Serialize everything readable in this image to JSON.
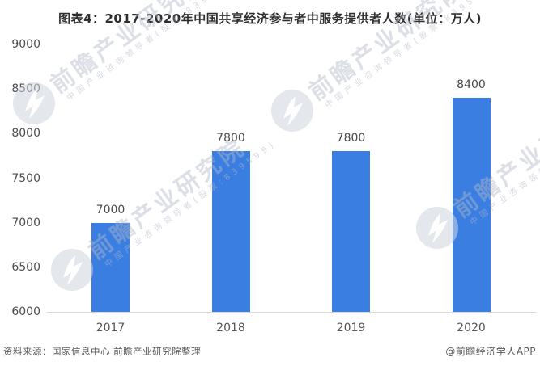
{
  "title": "图表4：2017-2020年中国共享经济参与者中服务提供者人数(单位：万人)",
  "footer": {
    "source": "资料来源：国家信息中心 前瞻产业研究院整理",
    "credit": "@前瞻经济学人APP"
  },
  "watermark": {
    "large": "前瞻产业研究院",
    "small": "中国产业咨询领导者(股票:839599)"
  },
  "colors": {
    "bar": "#3b7ee2",
    "axis_line": "#d9d9d9",
    "tick_text": "#4d4d4d",
    "watermark": "#dfe2e8"
  },
  "chart_data": {
    "type": "bar",
    "categories": [
      "2017",
      "2018",
      "2019",
      "2020"
    ],
    "values": [
      7000,
      7800,
      7800,
      8400
    ],
    "data_labels": [
      "7000",
      "7800",
      "7800",
      "8400"
    ],
    "title": "图表4：2017-2020年中国共享经济参与者中服务提供者人数(单位：万人)",
    "xlabel": "",
    "ylabel": "",
    "ylim": [
      6000,
      9000
    ],
    "yticks": [
      6000,
      6500,
      7000,
      7500,
      8000,
      8500,
      9000
    ],
    "grid": false,
    "legend_position": "none"
  }
}
